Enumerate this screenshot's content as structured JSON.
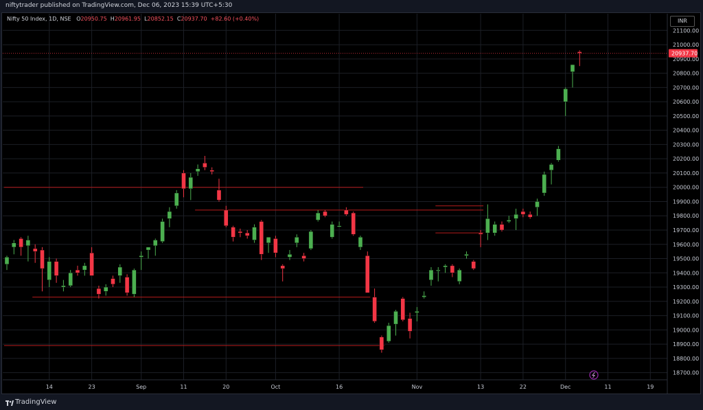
{
  "header": {
    "published_text": "niftytrader published on TradingView.com, Dec 06, 2023 15:39 UTC+5:30"
  },
  "legend": {
    "symbol": "Nifty 50 Index, 1D, NSE",
    "open_label": "O",
    "open_value": "20950.75",
    "high_label": "H",
    "high_value": "20961.95",
    "low_label": "L",
    "low_value": "20852.15",
    "close_label": "C",
    "close_value": "20937.70",
    "change": "+82.60 (+0.40%)"
  },
  "currency": "INR",
  "footer": {
    "brand": "TradingView"
  },
  "colors": {
    "up": "#4caf50",
    "down": "#f23645",
    "background": "#000000",
    "level_line": "#b71c1c"
  },
  "chart_data": {
    "type": "candlestick",
    "y_ticks": [
      "21100.00",
      "21000.00",
      "20900.00",
      "20800.00",
      "20700.00",
      "20600.00",
      "20500.00",
      "20400.00",
      "20300.00",
      "20200.00",
      "20100.00",
      "20000.00",
      "19900.00",
      "19800.00",
      "19700.00",
      "19600.00",
      "19500.00",
      "19400.00",
      "19300.00",
      "19200.00",
      "19100.00",
      "19000.00",
      "18900.00",
      "18800.00",
      "18700.00"
    ],
    "ylim": [
      18650,
      21140
    ],
    "last_price_label": "20937.70",
    "x_ticks": [
      "14",
      "23",
      "Sep",
      "11",
      "20",
      "Oct",
      "16",
      "Nov",
      "13",
      "22",
      "Dec",
      "11",
      "19"
    ],
    "candles": [
      {
        "o": 19460,
        "h": 19520,
        "l": 19420,
        "c": 19510
      },
      {
        "o": 19580,
        "h": 19630,
        "l": 19530,
        "c": 19610
      },
      {
        "o": 19640,
        "h": 19650,
        "l": 19520,
        "c": 19580
      },
      {
        "o": 19590,
        "h": 19660,
        "l": 19480,
        "c": 19630
      },
      {
        "o": 19570,
        "h": 19600,
        "l": 19470,
        "c": 19550
      },
      {
        "o": 19560,
        "h": 19580,
        "l": 19270,
        "c": 19430
      },
      {
        "o": 19350,
        "h": 19510,
        "l": 19300,
        "c": 19480
      },
      {
        "o": 19480,
        "h": 19500,
        "l": 19330,
        "c": 19380
      },
      {
        "o": 19300,
        "h": 19350,
        "l": 19270,
        "c": 19310
      },
      {
        "o": 19310,
        "h": 19420,
        "l": 19300,
        "c": 19400
      },
      {
        "o": 19420,
        "h": 19450,
        "l": 19380,
        "c": 19400
      },
      {
        "o": 19420,
        "h": 19470,
        "l": 19380,
        "c": 19450
      },
      {
        "o": 19540,
        "h": 19580,
        "l": 19380,
        "c": 19380
      },
      {
        "o": 19290,
        "h": 19310,
        "l": 19220,
        "c": 19250
      },
      {
        "o": 19270,
        "h": 19320,
        "l": 19240,
        "c": 19300
      },
      {
        "o": 19360,
        "h": 19380,
        "l": 19300,
        "c": 19320
      },
      {
        "o": 19380,
        "h": 19460,
        "l": 19330,
        "c": 19440
      },
      {
        "o": 19370,
        "h": 19390,
        "l": 19240,
        "c": 19260
      },
      {
        "o": 19250,
        "h": 19430,
        "l": 19230,
        "c": 19420
      },
      {
        "o": 19510,
        "h": 19550,
        "l": 19420,
        "c": 19520
      },
      {
        "o": 19560,
        "h": 19580,
        "l": 19500,
        "c": 19580
      },
      {
        "o": 19590,
        "h": 19640,
        "l": 19520,
        "c": 19630
      },
      {
        "o": 19620,
        "h": 19780,
        "l": 19610,
        "c": 19760
      },
      {
        "o": 19780,
        "h": 19860,
        "l": 19720,
        "c": 19830
      },
      {
        "o": 19870,
        "h": 19980,
        "l": 19850,
        "c": 19960
      },
      {
        "o": 20100,
        "h": 20120,
        "l": 19930,
        "c": 19990
      },
      {
        "o": 19990,
        "h": 20100,
        "l": 19910,
        "c": 20070
      },
      {
        "o": 20110,
        "h": 20160,
        "l": 20080,
        "c": 20130
      },
      {
        "o": 20170,
        "h": 20220,
        "l": 20120,
        "c": 20140
      },
      {
        "o": 20120,
        "h": 20140,
        "l": 20090,
        "c": 20110
      },
      {
        "o": 19980,
        "h": 20060,
        "l": 19900,
        "c": 19910
      },
      {
        "o": 19840,
        "h": 19870,
        "l": 19720,
        "c": 19730
      },
      {
        "o": 19720,
        "h": 19730,
        "l": 19620,
        "c": 19650
      },
      {
        "o": 19690,
        "h": 19710,
        "l": 19650,
        "c": 19680
      },
      {
        "o": 19680,
        "h": 19700,
        "l": 19640,
        "c": 19660
      },
      {
        "o": 19630,
        "h": 19740,
        "l": 19610,
        "c": 19720
      },
      {
        "o": 19760,
        "h": 19770,
        "l": 19490,
        "c": 19530
      },
      {
        "o": 19610,
        "h": 19650,
        "l": 19540,
        "c": 19650
      },
      {
        "o": 19640,
        "h": 19660,
        "l": 19510,
        "c": 19540
      },
      {
        "o": 19450,
        "h": 19460,
        "l": 19340,
        "c": 19430
      },
      {
        "o": 19510,
        "h": 19560,
        "l": 19490,
        "c": 19530
      },
      {
        "o": 19610,
        "h": 19670,
        "l": 19580,
        "c": 19650
      },
      {
        "o": 19520,
        "h": 19540,
        "l": 19480,
        "c": 19500
      },
      {
        "o": 19570,
        "h": 19700,
        "l": 19560,
        "c": 19690
      },
      {
        "o": 19770,
        "h": 19840,
        "l": 19760,
        "c": 19820
      },
      {
        "o": 19830,
        "h": 19840,
        "l": 19790,
        "c": 19800
      },
      {
        "o": 19650,
        "h": 19760,
        "l": 19640,
        "c": 19740
      },
      {
        "o": 19730,
        "h": 19760,
        "l": 19720,
        "c": 19730
      },
      {
        "o": 19840,
        "h": 19860,
        "l": 19800,
        "c": 19810
      },
      {
        "o": 19820,
        "h": 19830,
        "l": 19660,
        "c": 19670
      },
      {
        "o": 19580,
        "h": 19660,
        "l": 19560,
        "c": 19650
      },
      {
        "o": 19520,
        "h": 19550,
        "l": 19260,
        "c": 19260
      },
      {
        "o": 19230,
        "h": 19290,
        "l": 19050,
        "c": 19060
      },
      {
        "o": 18950,
        "h": 18960,
        "l": 18840,
        "c": 18860
      },
      {
        "o": 18920,
        "h": 19050,
        "l": 18910,
        "c": 19030
      },
      {
        "o": 19040,
        "h": 19140,
        "l": 18960,
        "c": 19130
      },
      {
        "o": 19220,
        "h": 19230,
        "l": 19060,
        "c": 19070
      },
      {
        "o": 19080,
        "h": 19120,
        "l": 18940,
        "c": 18990
      },
      {
        "o": 19120,
        "h": 19160,
        "l": 19060,
        "c": 19130
      },
      {
        "o": 19230,
        "h": 19270,
        "l": 19220,
        "c": 19240
      },
      {
        "o": 19350,
        "h": 19440,
        "l": 19310,
        "c": 19420
      },
      {
        "o": 19420,
        "h": 19440,
        "l": 19340,
        "c": 19420
      },
      {
        "o": 19440,
        "h": 19460,
        "l": 19400,
        "c": 19450
      },
      {
        "o": 19450,
        "h": 19460,
        "l": 19370,
        "c": 19400
      },
      {
        "o": 19340,
        "h": 19430,
        "l": 19320,
        "c": 19420
      },
      {
        "o": 19520,
        "h": 19550,
        "l": 19500,
        "c": 19530
      },
      {
        "o": 19480,
        "h": 19490,
        "l": 19420,
        "c": 19430
      },
      {
        "o": 19680,
        "h": 19700,
        "l": 19580,
        "c": 19670
      },
      {
        "o": 19680,
        "h": 19880,
        "l": 19630,
        "c": 19780
      },
      {
        "o": 19680,
        "h": 19760,
        "l": 19660,
        "c": 19740
      },
      {
        "o": 19740,
        "h": 19760,
        "l": 19690,
        "c": 19700
      },
      {
        "o": 19760,
        "h": 19800,
        "l": 19750,
        "c": 19770
      },
      {
        "o": 19780,
        "h": 19850,
        "l": 19700,
        "c": 19810
      },
      {
        "o": 19830,
        "h": 19850,
        "l": 19790,
        "c": 19810
      },
      {
        "o": 19810,
        "h": 19830,
        "l": 19780,
        "c": 19790
      },
      {
        "o": 19860,
        "h": 19920,
        "l": 19800,
        "c": 19900
      },
      {
        "o": 19960,
        "h": 20110,
        "l": 19940,
        "c": 20090
      },
      {
        "o": 20120,
        "h": 20170,
        "l": 20020,
        "c": 20160
      },
      {
        "o": 20190,
        "h": 20290,
        "l": 20180,
        "c": 20270
      },
      {
        "o": 20600,
        "h": 20700,
        "l": 20500,
        "c": 20690
      },
      {
        "o": 20810,
        "h": 20860,
        "l": 20700,
        "c": 20860
      },
      {
        "o": 20950,
        "h": 20960,
        "l": 20850,
        "c": 20940
      }
    ],
    "levels": [
      {
        "price": 20000,
        "from": 0,
        "to": 50
      },
      {
        "price": 19840,
        "from": 27,
        "to": 67
      },
      {
        "price": 19870,
        "from": 61,
        "to": 67
      },
      {
        "price": 19680,
        "from": 61,
        "to": 67
      },
      {
        "price": 19230,
        "from": 4,
        "to": 51
      },
      {
        "price": 18890,
        "from": 0,
        "to": 53
      }
    ]
  }
}
